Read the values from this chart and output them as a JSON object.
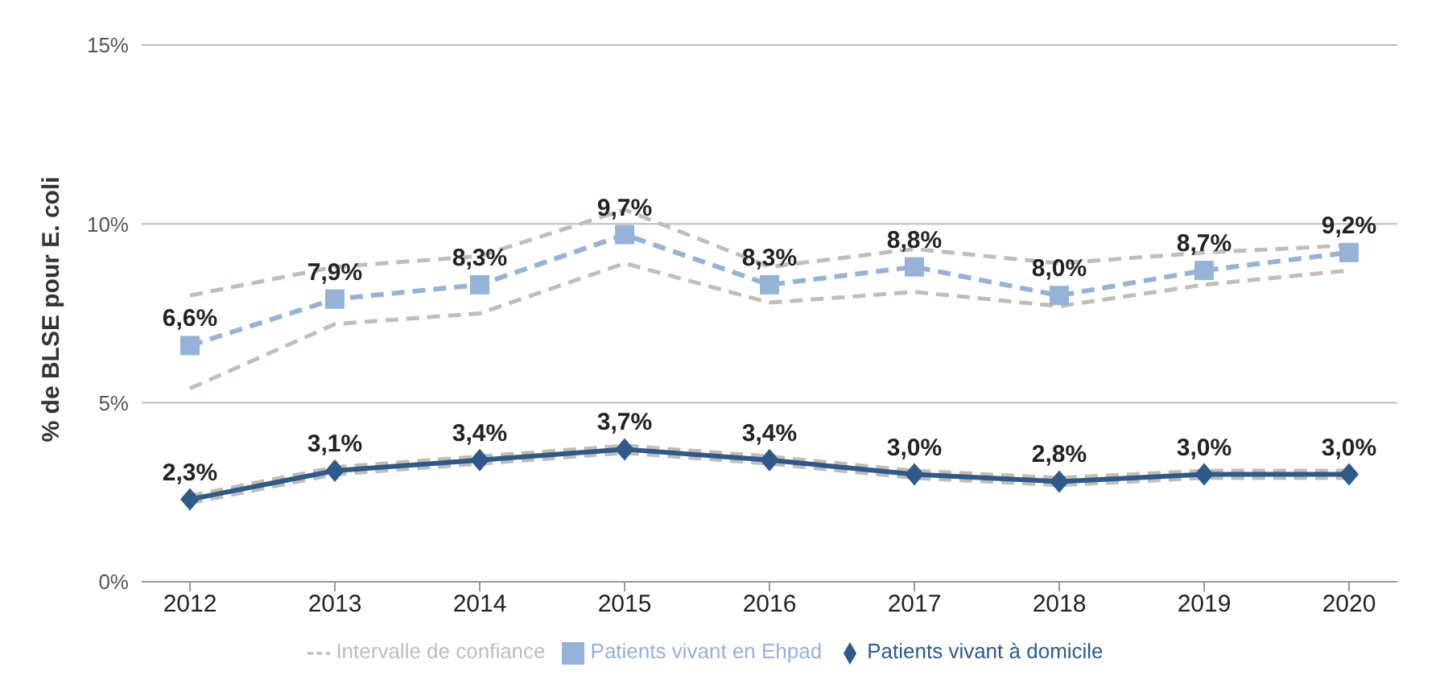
{
  "chart_data": {
    "type": "line",
    "ylabel": "% de BLSE pour E. coli",
    "categories": [
      "2012",
      "2013",
      "2014",
      "2015",
      "2016",
      "2017",
      "2018",
      "2019",
      "2020"
    ],
    "series": [
      {
        "name": "Patients vivant en Ehpad",
        "color": "#95b3d7",
        "marker": "square",
        "line_style": "dashed",
        "values": [
          6.6,
          7.9,
          8.3,
          9.7,
          8.3,
          8.8,
          8.0,
          8.7,
          9.2
        ],
        "value_labels": [
          "6,6%",
          "7,9%",
          "8,3%",
          "9,7%",
          "8,3%",
          "8,8%",
          "8,0%",
          "8,7%",
          "9,2%"
        ]
      },
      {
        "name": "Patients vivant à domicile",
        "color": "#2e5a8a",
        "marker": "diamond",
        "line_style": "solid",
        "values": [
          2.3,
          3.1,
          3.4,
          3.7,
          3.4,
          3.0,
          2.8,
          3.0,
          3.0
        ],
        "value_labels": [
          "2,3%",
          "3,1%",
          "3,4%",
          "3,7%",
          "3,4%",
          "3,0%",
          "2,8%",
          "3,0%",
          "3,0%"
        ]
      },
      {
        "name": "Intervalle de confiance",
        "color": "#c4bdb5",
        "marker": "none",
        "line_style": "dashed",
        "values": [
          8.0,
          8.8,
          9.1,
          10.4,
          8.8,
          9.3,
          8.9,
          9.2,
          9.4
        ]
      },
      {
        "color": "#c4bdb5",
        "marker": "none",
        "line_style": "dashed",
        "values": [
          5.4,
          7.2,
          7.5,
          8.9,
          7.8,
          8.1,
          7.7,
          8.3,
          8.7
        ]
      },
      {
        "color": "#c4bdb5",
        "marker": "none",
        "line_style": "dashed",
        "values": [
          2.4,
          3.2,
          3.5,
          3.8,
          3.5,
          3.1,
          2.9,
          3.1,
          3.1
        ]
      },
      {
        "color": "#c4bdb5",
        "marker": "none",
        "line_style": "dashed",
        "values": [
          2.2,
          3.0,
          3.3,
          3.6,
          3.3,
          2.9,
          2.7,
          2.9,
          2.9
        ]
      }
    ],
    "ylim": [
      0,
      15
    ],
    "yticks": [
      {
        "value": 0,
        "label": "0%"
      },
      {
        "value": 5,
        "label": "5%"
      },
      {
        "value": 10,
        "label": "10%"
      },
      {
        "value": 15,
        "label": "15%"
      }
    ],
    "grid": "y",
    "legend": "bottom"
  }
}
